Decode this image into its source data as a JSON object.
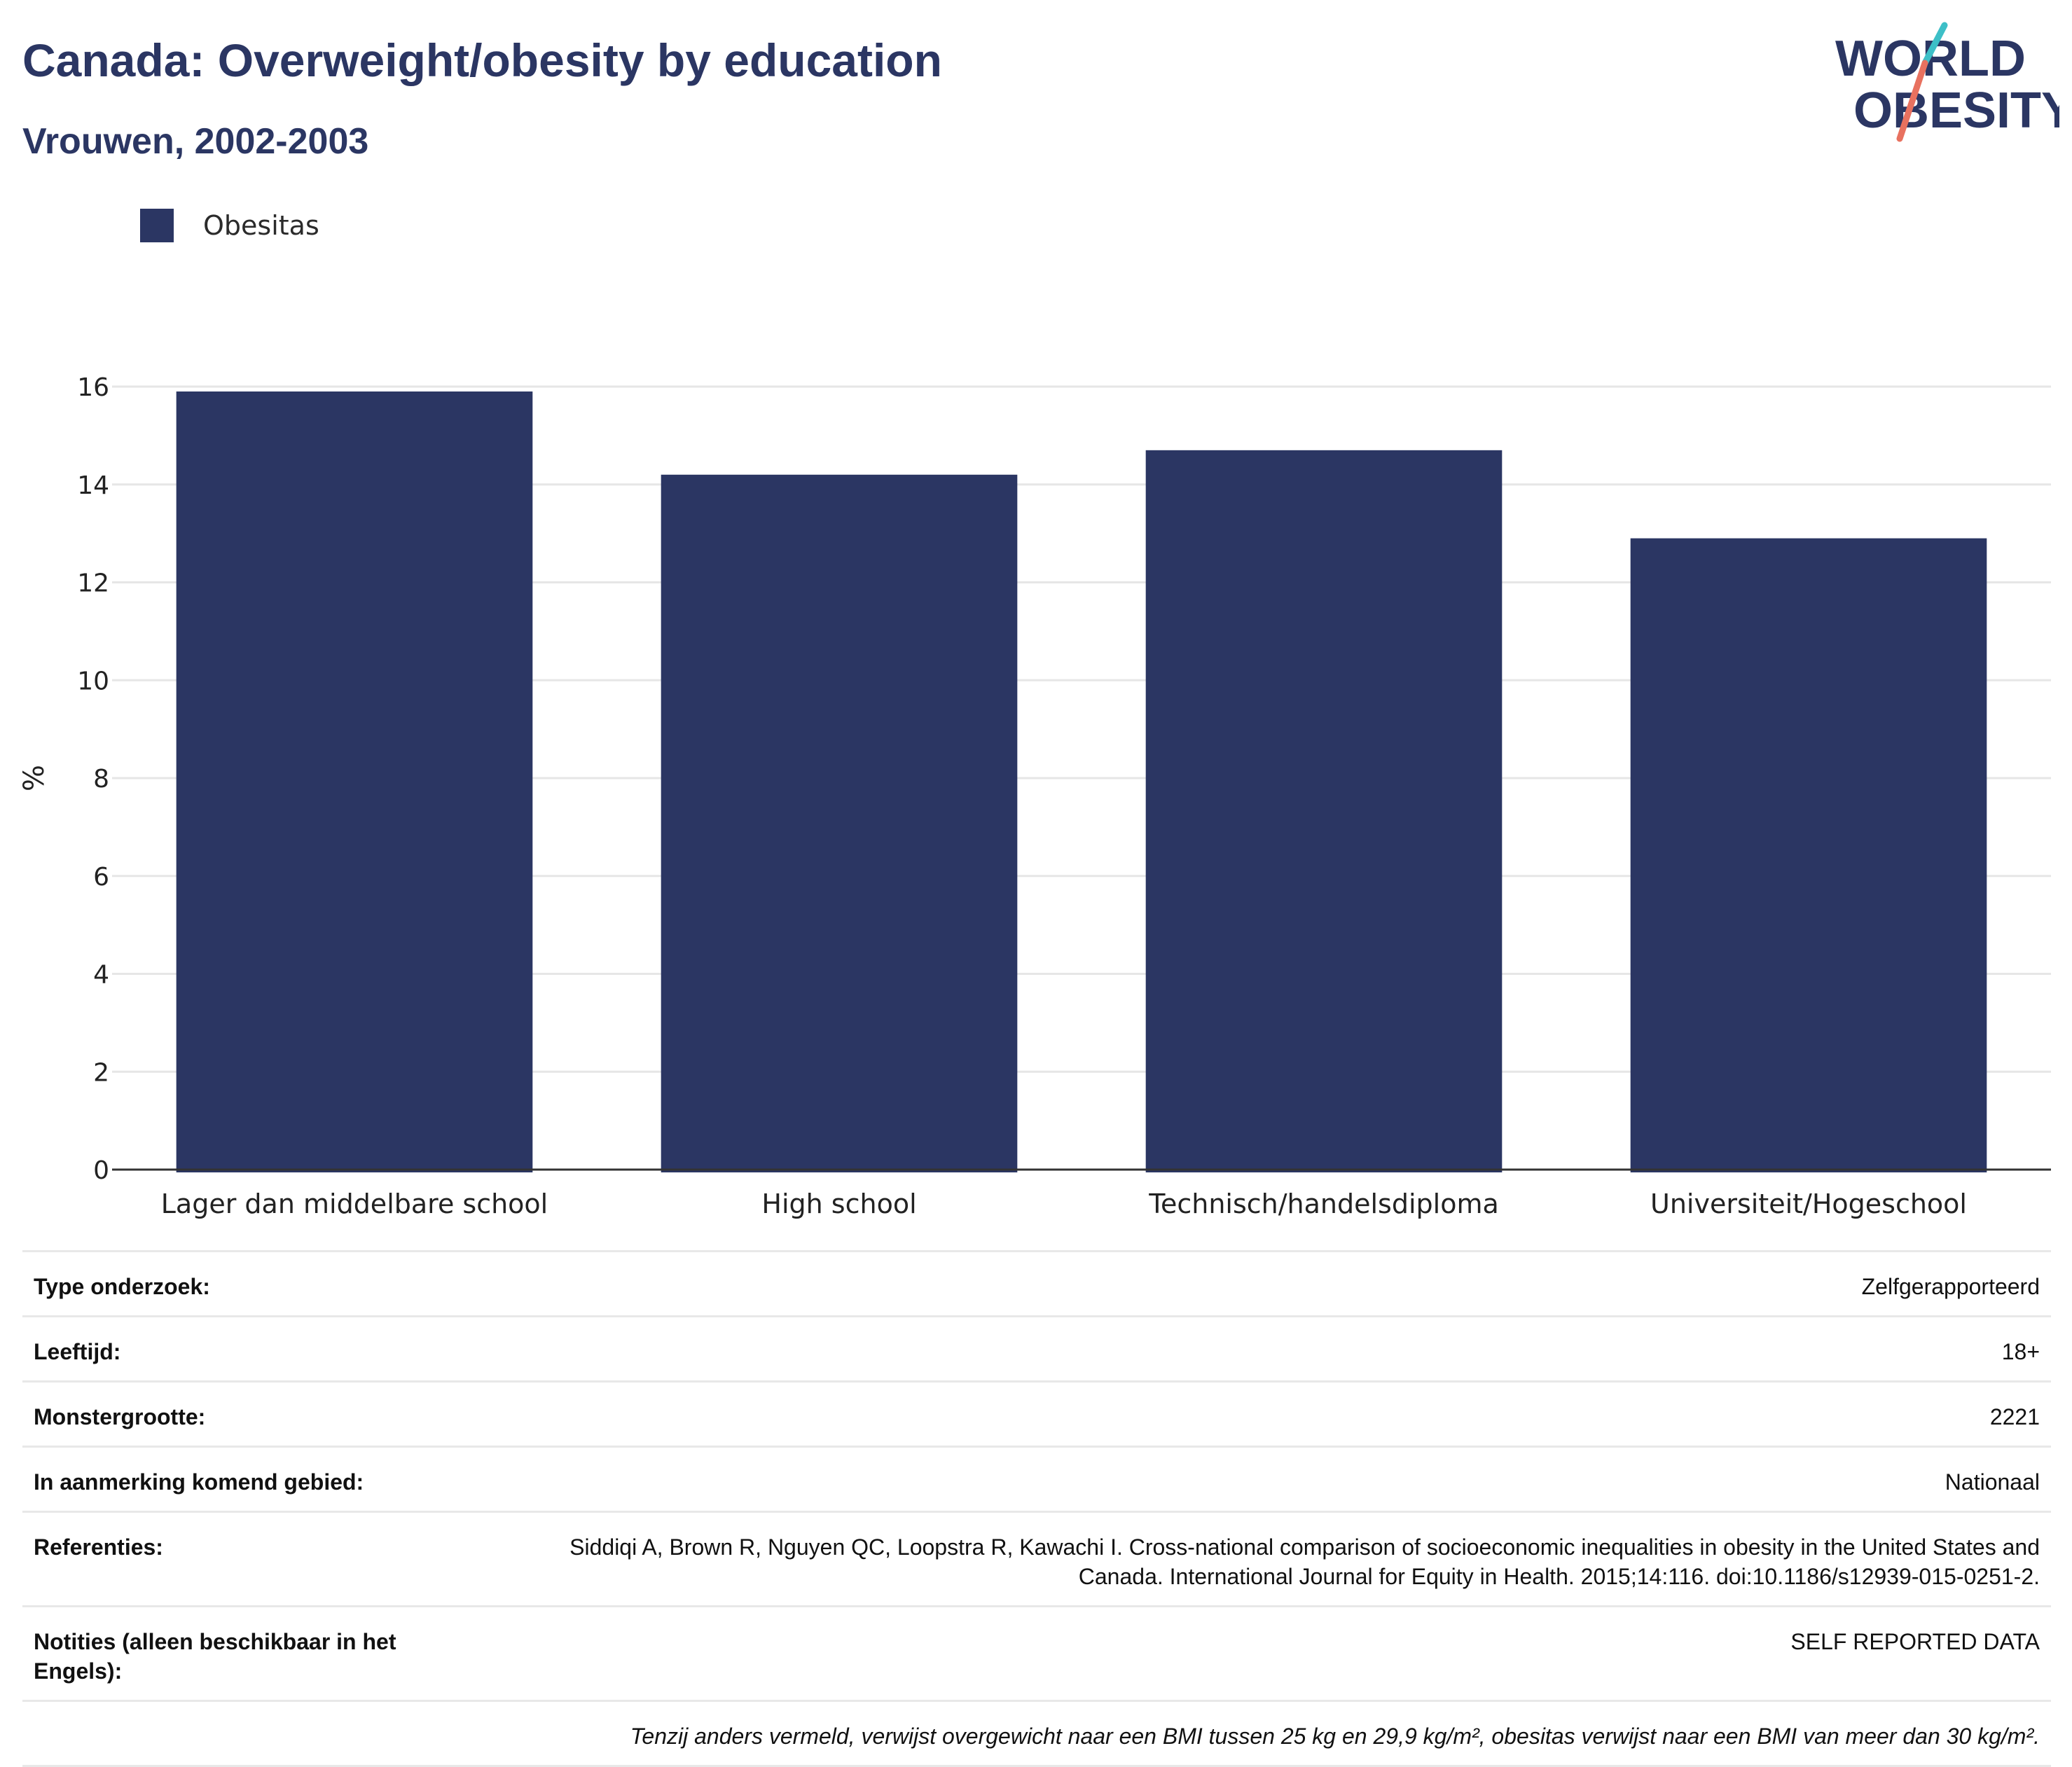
{
  "title": "Canada: Overweight/obesity by education",
  "subtitle": "Vrouwen, 2002-2003",
  "logo": {
    "line1": "WORLD",
    "line2": "OBESITY",
    "accent_colors": [
      "#3dbfc7",
      "#e8715f"
    ]
  },
  "colors": {
    "bar": "#2b3663",
    "title": "#2b3663",
    "grid": "#e6e6e6",
    "axis": "#333333"
  },
  "chart_data": {
    "type": "bar",
    "categories": [
      "Lager dan middelbare school",
      "High school",
      "Technisch/handelsdiploma",
      "Universiteit/Hogeschool"
    ],
    "series": [
      {
        "name": "Obesitas",
        "values": [
          15.9,
          14.2,
          14.7,
          12.9
        ]
      }
    ],
    "ylabel": "%",
    "xlabel": "",
    "ylim": [
      0,
      16
    ],
    "yticks": [
      0,
      2,
      4,
      6,
      8,
      10,
      12,
      14,
      16
    ],
    "grid": true,
    "legend_position": "top-left"
  },
  "info_rows": [
    {
      "key": "Type onderzoek:",
      "value": "Zelfgerapporteerd"
    },
    {
      "key": "Leeftijd:",
      "value": "18+"
    },
    {
      "key": "Monstergrootte:",
      "value": "2221"
    },
    {
      "key": "In aanmerking komend gebied:",
      "value": "Nationaal"
    },
    {
      "key": "Referenties:",
      "value": "Siddiqi A, Brown R, Nguyen QC, Loopstra R, Kawachi I. Cross-national comparison of socioeconomic inequalities in obesity in the United States and Canada. International Journal for Equity in Health. 2015;14:116. doi:10.1186/s12939-015-0251-2."
    },
    {
      "key": "Notities (alleen beschikbaar in het Engels):",
      "value": "SELF REPORTED DATA"
    }
  ],
  "footnote": "Tenzij anders vermeld, verwijst overgewicht naar een BMI tussen 25 kg en 29,9 kg/m², obesitas verwijst naar een BMI van meer dan 30 kg/m²."
}
